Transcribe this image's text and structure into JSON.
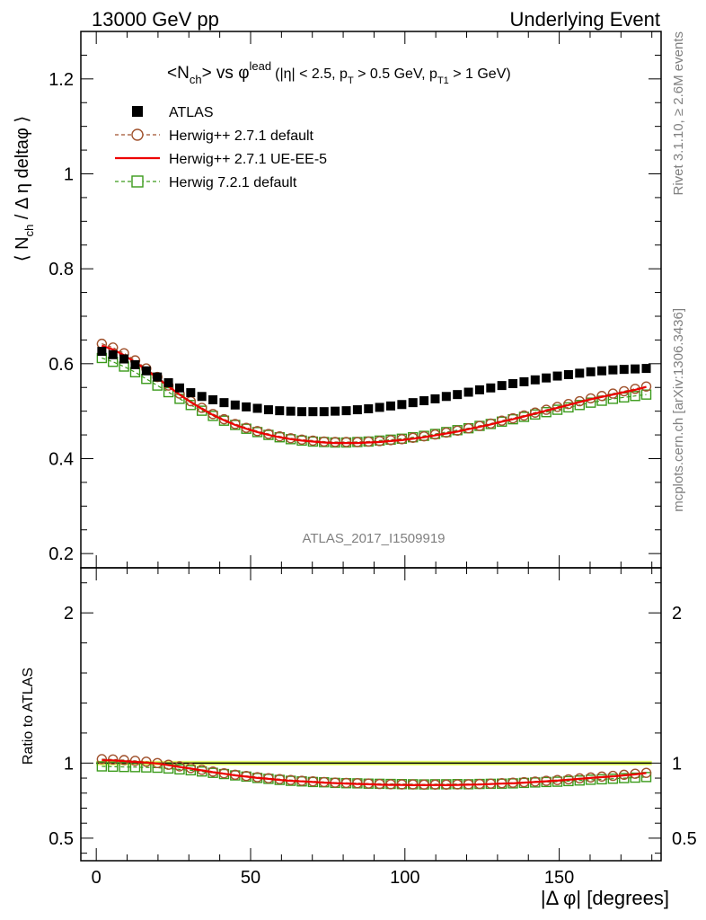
{
  "header": {
    "left": "13000 GeV pp",
    "right": "Underlying Event"
  },
  "side_notes": {
    "rivet": "Rivet 3.1.10, ≥ 2.6M events",
    "mcplots": "mcplots.cern.ch [arXiv:1306.3436]"
  },
  "watermark": "ATLAS_2017_I1509919",
  "colors": {
    "atlas": "#000000",
    "herwigpp_default": "#a0522d",
    "herwigpp_ueee5": "#ee0000",
    "herwig7_default": "#3a9a1a",
    "ratio_band": "#e6ff66"
  },
  "chart_data": [
    {
      "type": "scatter",
      "title": "<Nch> vs φlead (|η| < 2.5, pT > 0.5 GeV, pT1 > 1 GeV)",
      "title_parts": {
        "open": "<N",
        "sub_ch": "ch",
        "mid": "> vs φ",
        "sup_lead": "lead",
        "cut_open": "(|η| < 2.5, p",
        "sub_t": "T",
        "cut_mid": " > 0.5 GeV, p",
        "sub_t1": "T1",
        "cut_close": " > 1 GeV)"
      },
      "ylabel": "⟨ Nch / Δη deltaφ ⟩",
      "ylabel_parts": {
        "open": "⟨ N",
        "sub": "ch",
        "rest": " / Δ η deltaφ ⟩"
      },
      "xlim": [
        -5,
        183
      ],
      "ylim": [
        0.17,
        1.3
      ],
      "y_ticks": [
        0.2,
        0.4,
        0.6,
        0.8,
        1,
        1.2
      ],
      "y_tick_labels": [
        "0.2",
        "0.4",
        "0.6",
        "0.8",
        "1",
        "1.2"
      ],
      "legend_position": "top-left",
      "x": [
        1.8,
        5.4,
        9.0,
        12.6,
        16.2,
        19.8,
        23.4,
        27.0,
        30.6,
        34.2,
        37.8,
        41.4,
        45.0,
        48.6,
        52.2,
        55.8,
        59.4,
        63.0,
        66.6,
        70.2,
        73.8,
        77.4,
        81.0,
        84.6,
        88.2,
        91.8,
        95.4,
        99.0,
        102.6,
        106.2,
        109.8,
        113.4,
        117.0,
        120.6,
        124.2,
        127.8,
        131.4,
        135.0,
        138.6,
        142.2,
        145.8,
        149.4,
        153.0,
        156.6,
        160.2,
        163.8,
        167.4,
        171.0,
        174.6,
        178.2
      ],
      "series": [
        {
          "name": "ATLAS",
          "marker": "filled-square",
          "values": [
            0.626,
            0.619,
            0.61,
            0.598,
            0.585,
            0.572,
            0.56,
            0.549,
            0.539,
            0.531,
            0.524,
            0.518,
            0.513,
            0.509,
            0.506,
            0.503,
            0.501,
            0.5,
            0.499,
            0.499,
            0.499,
            0.5,
            0.501,
            0.503,
            0.505,
            0.508,
            0.511,
            0.514,
            0.518,
            0.522,
            0.526,
            0.531,
            0.535,
            0.54,
            0.545,
            0.549,
            0.554,
            0.558,
            0.562,
            0.566,
            0.57,
            0.574,
            0.577,
            0.58,
            0.583,
            0.585,
            0.587,
            0.588,
            0.589,
            0.59
          ]
        },
        {
          "name": "Herwig++ 2.7.1 default",
          "marker": "open-circle-dashed",
          "values": [
            0.642,
            0.634,
            0.622,
            0.607,
            0.59,
            0.572,
            0.554,
            0.537,
            0.521,
            0.507,
            0.494,
            0.483,
            0.473,
            0.465,
            0.458,
            0.452,
            0.447,
            0.443,
            0.44,
            0.438,
            0.436,
            0.435,
            0.435,
            0.435,
            0.436,
            0.437,
            0.439,
            0.441,
            0.444,
            0.447,
            0.451,
            0.455,
            0.459,
            0.464,
            0.469,
            0.474,
            0.48,
            0.485,
            0.491,
            0.497,
            0.503,
            0.509,
            0.515,
            0.521,
            0.527,
            0.532,
            0.537,
            0.542,
            0.547,
            0.552
          ]
        },
        {
          "name": "Herwig++ 2.7.1 UE-EE-5",
          "marker": "solid-line",
          "values": [
            0.638,
            0.63,
            0.618,
            0.603,
            0.587,
            0.57,
            0.552,
            0.535,
            0.519,
            0.505,
            0.492,
            0.481,
            0.471,
            0.463,
            0.456,
            0.45,
            0.445,
            0.441,
            0.438,
            0.436,
            0.434,
            0.433,
            0.433,
            0.433,
            0.434,
            0.435,
            0.437,
            0.439,
            0.442,
            0.445,
            0.449,
            0.453,
            0.457,
            0.462,
            0.467,
            0.472,
            0.478,
            0.483,
            0.489,
            0.495,
            0.501,
            0.507,
            0.513,
            0.519,
            0.525,
            0.53,
            0.535,
            0.54,
            0.545,
            0.551
          ]
        },
        {
          "name": "Herwig 7.2.1 default",
          "marker": "open-square-dashed",
          "values": [
            0.612,
            0.604,
            0.594,
            0.582,
            0.568,
            0.554,
            0.54,
            0.526,
            0.513,
            0.501,
            0.49,
            0.48,
            0.471,
            0.463,
            0.456,
            0.45,
            0.445,
            0.441,
            0.438,
            0.436,
            0.435,
            0.434,
            0.434,
            0.435,
            0.436,
            0.438,
            0.44,
            0.442,
            0.445,
            0.448,
            0.452,
            0.456,
            0.46,
            0.464,
            0.469,
            0.473,
            0.478,
            0.483,
            0.488,
            0.493,
            0.498,
            0.503,
            0.508,
            0.513,
            0.518,
            0.522,
            0.526,
            0.529,
            0.532,
            0.535
          ]
        }
      ]
    },
    {
      "type": "scatter",
      "ylabel": "Ratio to ATLAS",
      "xlabel": "|Δ φ| [degrees]",
      "xlim": [
        -5,
        183
      ],
      "ylim": [
        0.35,
        2.3
      ],
      "y_ticks": [
        0.5,
        1,
        2
      ],
      "y_tick_labels": [
        "0.5",
        "1",
        "2"
      ],
      "x_ticks": [
        0,
        50,
        100,
        150
      ],
      "x_tick_labels": [
        "0",
        "50",
        "100",
        "150"
      ],
      "reference_band": [
        0.985,
        1.015
      ],
      "series": [
        {
          "name": "Herwig++ 2.7.1 default",
          "marker": "open-circle-dashed",
          "values": [
            1.026,
            1.024,
            1.02,
            1.015,
            1.009,
            1.0,
            0.989,
            0.978,
            0.967,
            0.955,
            0.943,
            0.932,
            0.922,
            0.914,
            0.906,
            0.899,
            0.893,
            0.887,
            0.882,
            0.878,
            0.874,
            0.87,
            0.868,
            0.866,
            0.864,
            0.861,
            0.859,
            0.858,
            0.858,
            0.857,
            0.857,
            0.857,
            0.858,
            0.859,
            0.861,
            0.863,
            0.866,
            0.869,
            0.873,
            0.877,
            0.882,
            0.887,
            0.892,
            0.898,
            0.904,
            0.91,
            0.915,
            0.922,
            0.929,
            0.935
          ]
        },
        {
          "name": "Herwig++ 2.7.1 UE-EE-5",
          "marker": "solid-line",
          "values": [
            1.019,
            1.018,
            1.013,
            1.008,
            1.003,
            0.997,
            0.986,
            0.974,
            0.963,
            0.951,
            0.939,
            0.929,
            0.918,
            0.91,
            0.901,
            0.895,
            0.888,
            0.882,
            0.878,
            0.874,
            0.87,
            0.866,
            0.864,
            0.861,
            0.859,
            0.856,
            0.855,
            0.854,
            0.853,
            0.853,
            0.854,
            0.853,
            0.854,
            0.856,
            0.857,
            0.86,
            0.863,
            0.865,
            0.87,
            0.874,
            0.879,
            0.883,
            0.889,
            0.895,
            0.901,
            0.906,
            0.911,
            0.918,
            0.925,
            0.934
          ]
        },
        {
          "name": "Herwig 7.2.1 default",
          "marker": "open-square-dashed",
          "values": [
            0.978,
            0.976,
            0.974,
            0.973,
            0.971,
            0.969,
            0.964,
            0.958,
            0.952,
            0.944,
            0.935,
            0.927,
            0.918,
            0.91,
            0.901,
            0.895,
            0.888,
            0.882,
            0.878,
            0.874,
            0.872,
            0.868,
            0.866,
            0.865,
            0.863,
            0.862,
            0.861,
            0.86,
            0.859,
            0.858,
            0.859,
            0.859,
            0.86,
            0.859,
            0.861,
            0.862,
            0.863,
            0.865,
            0.868,
            0.871,
            0.874,
            0.876,
            0.88,
            0.884,
            0.889,
            0.892,
            0.896,
            0.9,
            0.903,
            0.907
          ]
        }
      ]
    }
  ]
}
